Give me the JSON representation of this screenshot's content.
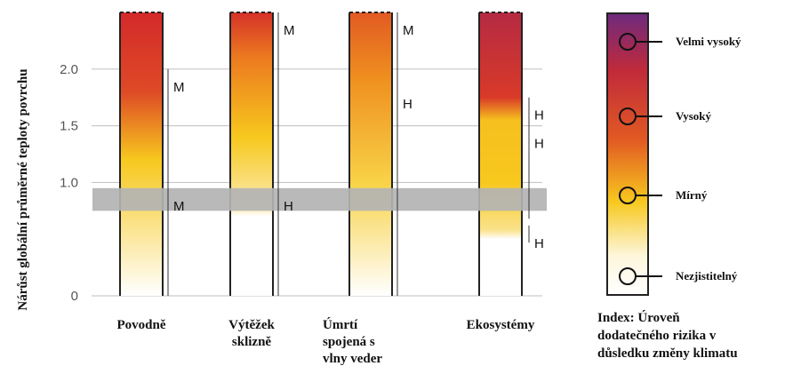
{
  "chart_data": {
    "type": "bar",
    "ylabel": "Nárůst globální průměrné teploty povrchu",
    "yticks": [
      "0",
      "1.0",
      "1.5",
      "2.0"
    ],
    "ylim": [
      0,
      2.5
    ],
    "baseline_band": [
      0.75,
      0.95
    ],
    "categories": [
      "Povodně",
      "Výtěžek sklizně",
      "Úmrtí spojená s vlny veder",
      "Ekosystémy"
    ],
    "category_lines": [
      [
        "Povodně"
      ],
      [
        "Výtěžek",
        "sklizně"
      ],
      [
        "Úmrtí",
        "spojená s",
        "vlny veder"
      ],
      [
        "Ekosystémy"
      ]
    ],
    "risk_colors": {
      "undetectable": "#ffffff",
      "moderate": "#f7c81e",
      "high": "#d42a2a",
      "very_high": "#6e2a7e"
    },
    "bars": [
      {
        "category": "Povodně",
        "gradient": [
          [
            0,
            0
          ],
          [
            1.2,
            1
          ],
          [
            1.8,
            1.8
          ],
          [
            2.5,
            2
          ]
        ],
        "confidence": [
          {
            "from": 0.0,
            "to": 0.95,
            "label": "M"
          },
          {
            "from": 0.95,
            "to": 2.0,
            "label": "M"
          }
        ]
      },
      {
        "category": "Výtěžek sklizně",
        "gradient": [
          [
            0,
            0
          ],
          [
            0.7,
            0
          ],
          [
            0.78,
            0.45
          ],
          [
            1.4,
            1
          ],
          [
            2.1,
            1.5
          ],
          [
            2.5,
            1.95
          ]
        ],
        "confidence": [
          {
            "from": 0.0,
            "to": 0.95,
            "label": "H"
          },
          {
            "from": 0.95,
            "to": 2.5,
            "label": "M"
          }
        ]
      },
      {
        "category": "Úmrtí spojená s vlny veder",
        "gradient": [
          [
            0,
            0
          ],
          [
            1.0,
            0.85
          ],
          [
            1.9,
            1.35
          ],
          [
            2.5,
            1.7
          ]
        ],
        "confidence": [
          {
            "from": 0.0,
            "to": 1.85,
            "label": "H"
          },
          {
            "from": 1.85,
            "to": 2.5,
            "label": "M"
          }
        ]
      },
      {
        "category": "Ekosystémy",
        "gradient": [
          [
            0,
            0
          ],
          [
            0.5,
            0
          ],
          [
            0.58,
            0.6
          ],
          [
            1.0,
            1
          ],
          [
            1.55,
            1.05
          ],
          [
            1.75,
            1.9
          ],
          [
            2.5,
            2.3
          ]
        ],
        "confidence": [
          {
            "from": 0.47,
            "to": 0.62,
            "label": "H"
          },
          {
            "from": 0.68,
            "to": 1.5,
            "label": "H"
          },
          {
            "from": 1.5,
            "to": 1.75,
            "label": "H"
          }
        ]
      }
    ],
    "legend": {
      "title_lines": [
        "Index: Úroveň",
        "dodatečného rizika v",
        "důsledku změny klimatu"
      ],
      "levels": [
        {
          "label": "Velmi vysoký",
          "value": 3
        },
        {
          "label": "Vysoký",
          "value": 2
        },
        {
          "label": "Mírný",
          "value": 1
        },
        {
          "label": "Nezjistitelný",
          "value": 0
        }
      ]
    },
    "grid": true
  }
}
